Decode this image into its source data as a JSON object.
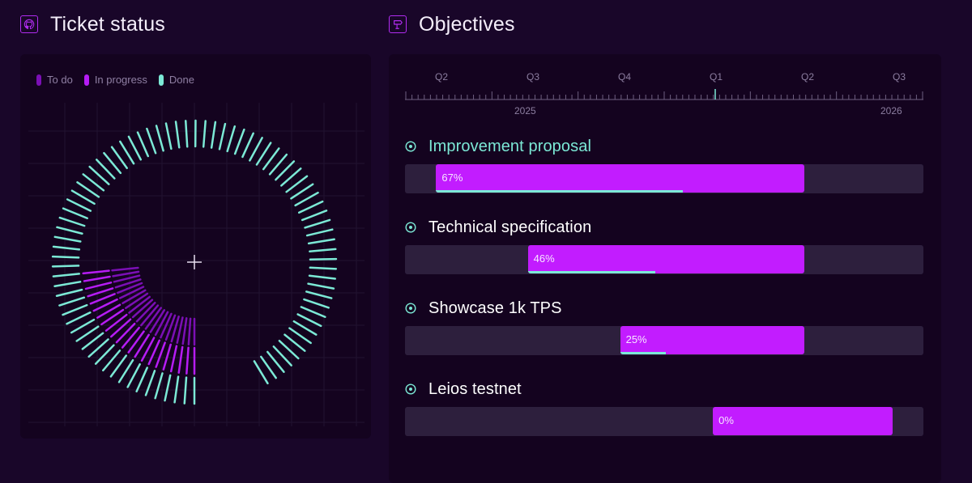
{
  "ticket_status": {
    "title": "Ticket status",
    "icon": "github-icon",
    "legend": [
      {
        "label": "To do",
        "color": "#7b0fb5"
      },
      {
        "label": "In progress",
        "color": "#b61cf5"
      },
      {
        "label": "Done",
        "color": "#7ce9d6"
      }
    ],
    "rings": {
      "done_fraction": 0.92,
      "in_progress_fraction": 0.25,
      "to_do_fraction": 0.25
    }
  },
  "objectives": {
    "title": "Objectives",
    "icon": "signpost-icon",
    "timeline": {
      "quarters": [
        "Q2",
        "Q3",
        "Q4",
        "Q1",
        "Q2",
        "Q3"
      ],
      "years": [
        "2025",
        "2026"
      ]
    },
    "items": [
      {
        "name": "Improvement proposal",
        "percent": "67%",
        "progress": 0.67,
        "start": 0.06,
        "end": 0.77,
        "title_color": "#7ce9d6"
      },
      {
        "name": "Technical specification",
        "percent": "46%",
        "progress": 0.46,
        "start": 0.237,
        "end": 0.77,
        "title_color": "#ffffff"
      },
      {
        "name": "Showcase 1k TPS",
        "percent": "25%",
        "progress": 0.25,
        "start": 0.415,
        "end": 0.77,
        "title_color": "#ffffff"
      },
      {
        "name": "Leios testnet",
        "percent": "0%",
        "progress": 0,
        "start": 0.594,
        "end": 0.94,
        "title_color": "#ffffff"
      }
    ]
  }
}
